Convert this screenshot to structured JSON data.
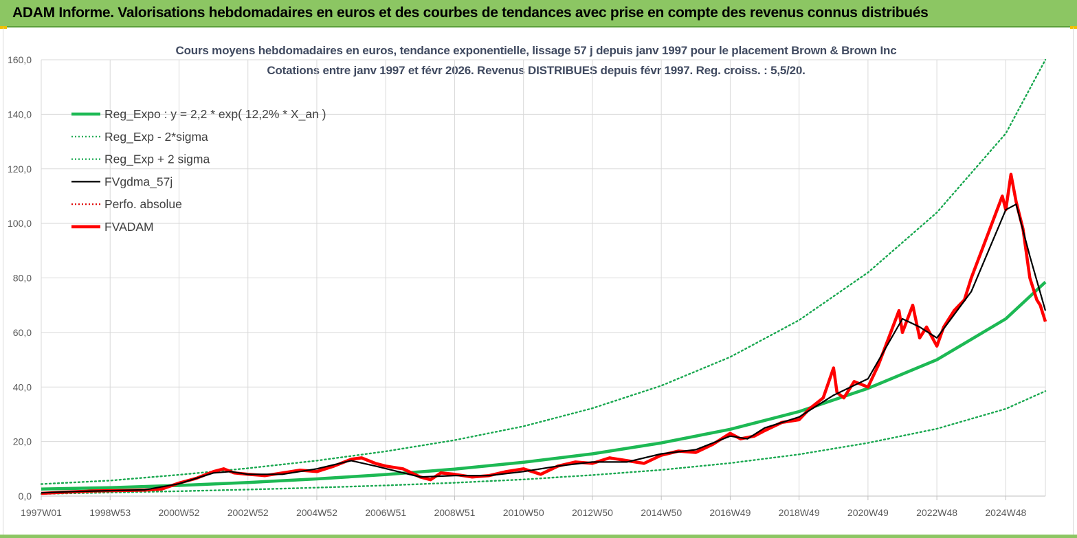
{
  "header": {
    "title": "ADAM Informe. Valorisations hebdomadaires en euros et des courbes de tendances avec prise en compte des revenus connus distribués"
  },
  "chart_data": {
    "type": "line",
    "title": "Cours moyens hebdomadaires en euros, tendance exponentielle, lissage 57 j depuis janv 1997 pour le placement Brown & Brown Inc",
    "subtitle": "Cotations entre janv 1997 et févr 2026. Revenus DISTRIBUES depuis févr 1997. Reg. croiss. : 5,5/20.",
    "xlabel": "",
    "ylabel": "",
    "ylim": [
      0,
      160
    ],
    "xlim": [
      1997.0,
      2026.15
    ],
    "grid": true,
    "legend_position": "top-left",
    "y_ticks": [
      "0,0",
      "20,0",
      "40,0",
      "60,0",
      "80,0",
      "100,0",
      "120,0",
      "140,0",
      "160,0"
    ],
    "x_ticks": [
      {
        "label": "1997W01",
        "t": 1997.0
      },
      {
        "label": "1998W53",
        "t": 1999.0
      },
      {
        "label": "2000W52",
        "t": 2001.0
      },
      {
        "label": "2002W52",
        "t": 2003.0
      },
      {
        "label": "2004W52",
        "t": 2005.0
      },
      {
        "label": "2006W51",
        "t": 2007.0
      },
      {
        "label": "2008W51",
        "t": 2009.0
      },
      {
        "label": "2010W50",
        "t": 2011.0
      },
      {
        "label": "2012W50",
        "t": 2013.0
      },
      {
        "label": "2014W50",
        "t": 2015.0
      },
      {
        "label": "2016W49",
        "t": 2017.0
      },
      {
        "label": "2018W49",
        "t": 2019.0
      },
      {
        "label": "2020W49",
        "t": 2021.0
      },
      {
        "label": "2022W48",
        "t": 2023.0
      },
      {
        "label": "2024W48",
        "t": 2025.0
      }
    ],
    "colors": {
      "trend": "#1db954",
      "envelope": "#1aa850",
      "smoothed": "#000000",
      "perf": "#e00000",
      "price": "#ff0000",
      "grid": "#d9d9d9",
      "axis_text": "#595959"
    },
    "series": [
      {
        "name": "Reg_Expo : y = 2,2 * exp( 12,2% *  X_an )",
        "style": "solid-thick",
        "color": "#1db954",
        "x": [
          1997,
          1999,
          2001,
          2003,
          2005,
          2007,
          2009,
          2011,
          2013,
          2015,
          2017,
          2019,
          2021,
          2023,
          2025,
          2026.15
        ],
        "values": [
          2.6,
          3.1,
          3.9,
          5.0,
          6.3,
          7.9,
          9.9,
          12.4,
          15.5,
          19.5,
          24.5,
          31.0,
          39.5,
          50.0,
          65.0,
          78.5
        ]
      },
      {
        "name": "Reg_Exp - 2*sigma",
        "style": "dotted",
        "color": "#1aa850",
        "x": [
          1997,
          1999,
          2001,
          2003,
          2005,
          2007,
          2009,
          2011,
          2013,
          2015,
          2017,
          2019,
          2021,
          2023,
          2025,
          2026.15
        ],
        "values": [
          0.8,
          1.3,
          1.8,
          2.4,
          3.1,
          3.9,
          4.9,
          6.1,
          7.7,
          9.6,
          12.1,
          15.3,
          19.5,
          24.7,
          32.0,
          38.5
        ]
      },
      {
        "name": "Reg_Exp + 2 sigma",
        "style": "dotted",
        "color": "#1aa850",
        "x": [
          1997,
          1999,
          2001,
          2003,
          2005,
          2007,
          2009,
          2011,
          2013,
          2015,
          2017,
          2019,
          2021,
          2023,
          2025,
          2026.15
        ],
        "values": [
          4.4,
          5.7,
          7.8,
          10.2,
          13.0,
          16.4,
          20.5,
          25.6,
          32.2,
          40.5,
          51.0,
          64.5,
          82.0,
          104.0,
          133.0,
          160.0
        ]
      },
      {
        "name": "FVgdma_57j",
        "style": "solid",
        "color": "#000000",
        "x": [
          1997,
          1998,
          1999,
          2000,
          2001,
          2002,
          2002.5,
          2003,
          2004,
          2005,
          2006,
          2006.7,
          2008,
          2009,
          2010,
          2011,
          2012,
          2013,
          2014,
          2015,
          2016,
          2017,
          2017.5,
          2018,
          2019,
          2020,
          2020.5,
          2021,
          2022,
          2022.5,
          2023,
          2024,
          2025,
          2025.3,
          2025.7,
          2026.15
        ],
        "values": [
          1.2,
          1.7,
          2.0,
          2.3,
          4.5,
          8.5,
          9.0,
          8.0,
          8.0,
          10.0,
          13.0,
          11.0,
          7.0,
          7.5,
          7.5,
          9.0,
          11.0,
          12.5,
          12.5,
          15.5,
          17.0,
          22.0,
          21.0,
          25.0,
          29.0,
          37.0,
          40.0,
          43.0,
          65.0,
          62.0,
          58.0,
          75.0,
          105.0,
          107.0,
          88.0,
          68.0
        ]
      },
      {
        "name": "Perfo. absolue",
        "style": "dotted",
        "color": "#e00000",
        "x": [],
        "values": []
      },
      {
        "name": "FVADAM",
        "style": "solid-thick",
        "color": "#ff0000",
        "x": [
          1997,
          1997.5,
          1998,
          1998.5,
          1999,
          1999.5,
          2000,
          2000.5,
          2001,
          2001.5,
          2002,
          2002.3,
          2002.6,
          2003,
          2003.5,
          2004,
          2004.5,
          2005,
          2005.5,
          2006,
          2006.3,
          2006.7,
          2007,
          2007.5,
          2008,
          2008.3,
          2008.6,
          2009,
          2009.5,
          2010,
          2010.5,
          2011,
          2011.5,
          2012,
          2012.5,
          2013,
          2013.5,
          2014,
          2014.5,
          2015,
          2015.5,
          2016,
          2016.5,
          2017,
          2017.3,
          2017.7,
          2018,
          2018.5,
          2019,
          2019.3,
          2019.7,
          2020,
          2020.1,
          2020.3,
          2020.6,
          2021,
          2021.3,
          2021.6,
          2021.9,
          2022,
          2022.3,
          2022.5,
          2022.7,
          2023,
          2023.2,
          2023.5,
          2023.8,
          2024,
          2024.3,
          2024.6,
          2024.9,
          2025.0,
          2025.15,
          2025.3,
          2025.5,
          2025.7,
          2025.9,
          2026.0,
          2026.15
        ],
        "values": [
          1.0,
          1.3,
          1.6,
          1.9,
          2.0,
          2.1,
          2.2,
          2.6,
          4.8,
          6.5,
          9.0,
          10.0,
          8.5,
          8.0,
          7.5,
          8.5,
          9.5,
          9.0,
          11.0,
          13.5,
          14.0,
          12.0,
          11.0,
          10.0,
          7.0,
          6.0,
          8.5,
          8.0,
          7.0,
          7.5,
          9.0,
          10.0,
          8.0,
          11.0,
          12.5,
          12.0,
          14.0,
          13.0,
          12.0,
          15.0,
          16.5,
          16.0,
          19.0,
          23.0,
          21.0,
          22.0,
          24.0,
          27.0,
          28.0,
          32.0,
          36.0,
          47.0,
          38.0,
          36.0,
          42.0,
          40.0,
          48.0,
          58.0,
          68.0,
          60.0,
          70.0,
          58.0,
          62.0,
          55.0,
          62.0,
          68.0,
          72.0,
          80.0,
          90.0,
          100.0,
          110.0,
          105.0,
          118.0,
          108.0,
          98.0,
          80.0,
          72.0,
          70.0,
          64.0
        ]
      }
    ]
  }
}
